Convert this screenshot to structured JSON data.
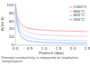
{
  "chart_data": {
    "type": "line",
    "xlabel": "Fluence (dpa)",
    "ylabel": "W/(m·K)",
    "caption": "Thermal conductivity is measured at irradiation temperature.",
    "x": [
      0.01,
      0.03,
      0.07,
      0.15,
      0.25,
      0.4,
      0.6,
      0.9,
      1.3,
      1.8,
      2.5
    ],
    "series": [
      {
        "name": "1300°C",
        "color": "#ffaaaa",
        "values": [
          100,
          88,
          72,
          57,
          49,
          43,
          40,
          38,
          36,
          35,
          34
        ]
      },
      {
        "name": "900°C",
        "color": "#ffccdd",
        "values": [
          100,
          85,
          66,
          49,
          40,
          33,
          29,
          26,
          24,
          23,
          22
        ]
      },
      {
        "name": "600°C",
        "color": "#bbddff",
        "values": [
          100,
          80,
          57,
          38,
          28,
          21,
          17,
          14,
          13,
          12,
          11
        ]
      },
      {
        "name": "300°C",
        "color": "#99bbee",
        "values": [
          100,
          75,
          48,
          28,
          18,
          12,
          9,
          7,
          6,
          5,
          5
        ]
      }
    ],
    "xlim": [
      0.0,
      2.5
    ],
    "ylim": [
      0,
      105
    ],
    "xticks": [
      0.0,
      0.5,
      1.0,
      1.5,
      2.0,
      2.5
    ],
    "yticks": [
      0,
      20,
      40,
      60,
      80,
      100
    ],
    "grid": false,
    "legend": "right"
  }
}
